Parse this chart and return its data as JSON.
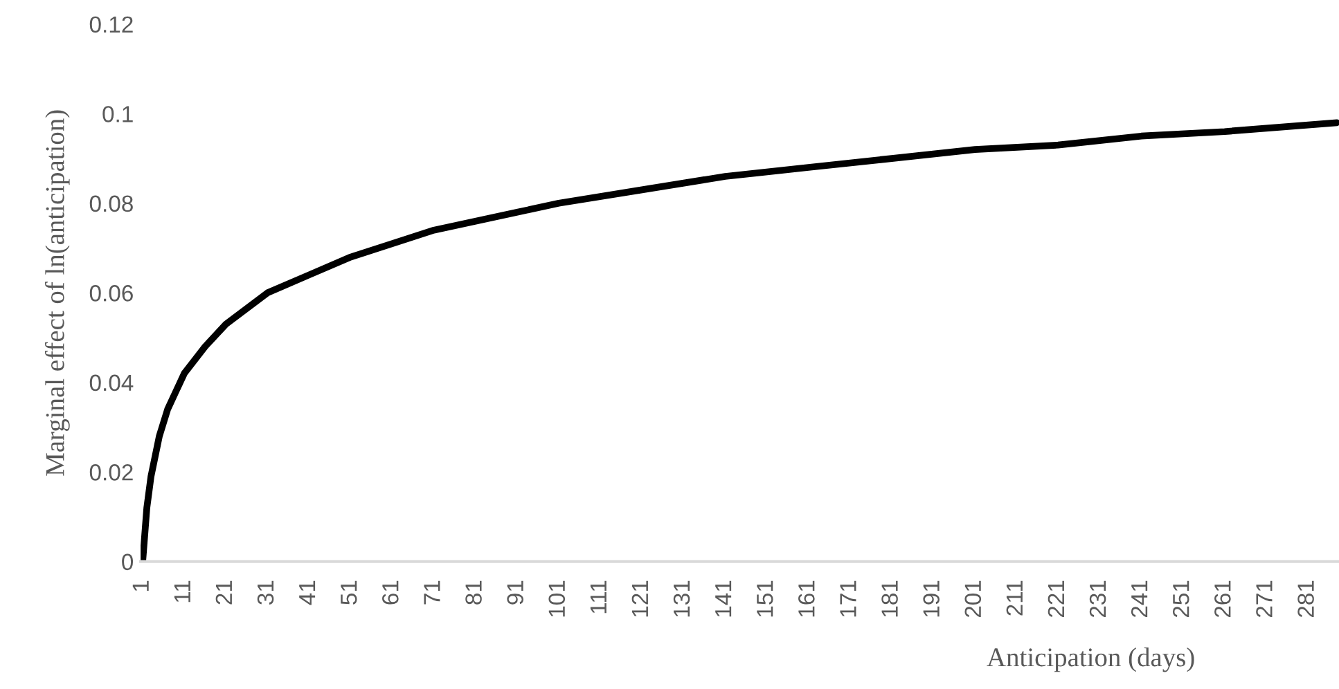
{
  "chart_data": {
    "type": "line",
    "xlabel": "Anticipation (days)",
    "ylabel": "Marginal effect of ln(anticipation)",
    "series": [
      {
        "color": "#000000",
        "x": [
          1,
          2,
          3,
          5,
          7,
          11,
          16,
          21,
          31,
          41,
          51,
          61,
          71,
          81,
          91,
          101,
          121,
          141,
          161,
          181,
          201,
          221,
          241,
          261,
          288
        ],
        "values": [
          0,
          0.012,
          0.019,
          0.028,
          0.034,
          0.042,
          0.048,
          0.053,
          0.06,
          0.064,
          0.068,
          0.071,
          0.074,
          0.076,
          0.078,
          0.08,
          0.083,
          0.086,
          0.088,
          0.09,
          0.092,
          0.093,
          0.095,
          0.096,
          0.098
        ]
      }
    ],
    "xlim": [
      0.5,
      288.5
    ],
    "xticks": [
      1,
      11,
      21,
      31,
      41,
      51,
      61,
      71,
      81,
      91,
      101,
      111,
      121,
      131,
      141,
      151,
      161,
      171,
      181,
      191,
      201,
      211,
      221,
      231,
      241,
      251,
      261,
      271,
      281
    ],
    "ylim": [
      0,
      0.12
    ],
    "yticks": [
      {
        "value": 0,
        "label": "0"
      },
      0.02,
      0.04,
      0.06,
      0.08,
      {
        "value": 0.1,
        "label": "0.1"
      },
      0.12
    ],
    "grid": false,
    "marker": "none",
    "line_style": "solid"
  }
}
